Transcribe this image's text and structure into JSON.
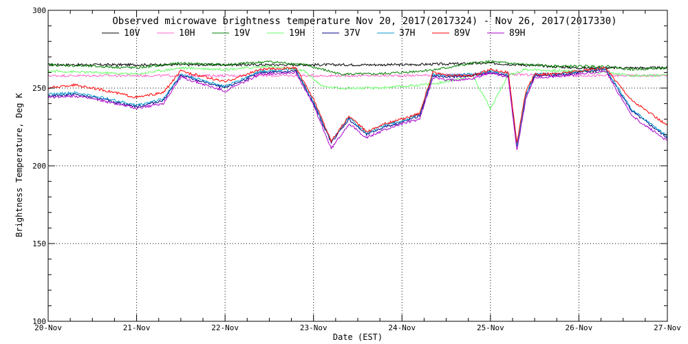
{
  "chart_data": {
    "type": "line",
    "title": "Observed microwave brightness temperature Nov 20, 2017(2017324) - Nov 26, 2017(2017330)",
    "xlabel": "Date (EST)",
    "ylabel": "Brightness Temperature, Deg K",
    "xlim": [
      "20-Nov",
      "27-Nov"
    ],
    "ylim": [
      100,
      300
    ],
    "yticks": [
      100,
      150,
      200,
      250,
      300
    ],
    "categories": [
      "20-Nov",
      "21-Nov",
      "22-Nov",
      "23-Nov",
      "24-Nov",
      "25-Nov",
      "26-Nov",
      "27-Nov"
    ],
    "grid": true,
    "legend_position": "top",
    "x_unit": "days since 20-Nov",
    "series": [
      {
        "name": "10V",
        "color": "#000000",
        "x": [
          0,
          1.5,
          2.0,
          3.0,
          4.0,
          5.0,
          6.0,
          7.0
        ],
        "values": [
          265,
          265,
          265,
          265,
          265,
          266,
          263,
          263
        ]
      },
      {
        "name": "10H",
        "color": "#ff66cc",
        "x": [
          0,
          1.5,
          2.0,
          3.0,
          4.0,
          5.0,
          6.0,
          7.0
        ],
        "values": [
          258,
          258,
          258,
          258,
          258,
          259,
          258,
          258
        ]
      },
      {
        "name": "19V",
        "color": "#008000",
        "x": [
          0,
          0.5,
          1.0,
          1.5,
          2.0,
          2.5,
          2.9,
          3.3,
          3.7,
          4.0,
          4.4,
          4.8,
          5.0,
          5.4,
          5.8,
          6.0,
          6.3,
          6.6,
          7.0
        ],
        "values": [
          265,
          264,
          263,
          266,
          265,
          267,
          265,
          259,
          259,
          260,
          262,
          266,
          267,
          265,
          264,
          264,
          264,
          262,
          263
        ]
      },
      {
        "name": "19H",
        "color": "#66ff66",
        "x": [
          0,
          0.5,
          1.0,
          1.5,
          2.0,
          2.5,
          2.9,
          3.1,
          3.3,
          3.7,
          4.0,
          4.4,
          4.8,
          5.0,
          5.2,
          5.4,
          5.8,
          6.0,
          6.3,
          6.6,
          7.0
        ],
        "values": [
          261,
          260,
          259,
          263,
          262,
          264,
          261,
          251,
          250,
          250,
          251,
          253,
          258,
          237,
          258,
          262,
          261,
          261,
          260,
          258,
          258
        ]
      },
      {
        "name": "37V",
        "color": "#000080",
        "x": [
          0,
          0.3,
          0.6,
          1.0,
          1.3,
          1.5,
          2.0,
          2.4,
          2.8,
          3.0,
          3.2,
          3.4,
          3.6,
          3.8,
          4.0,
          4.2,
          4.35,
          4.5,
          4.8,
          5.0,
          5.2,
          5.3,
          5.4,
          5.5,
          5.7,
          6.0,
          6.3,
          6.6,
          7.0
        ],
        "values": [
          245,
          246,
          243,
          238,
          242,
          258,
          250,
          260,
          261,
          240,
          215,
          230,
          220,
          225,
          228,
          232,
          258,
          257,
          258,
          260,
          258,
          212,
          245,
          258,
          258,
          260,
          262,
          235,
          218
        ]
      },
      {
        "name": "37H",
        "color": "#0099cc",
        "x": [
          0,
          0.3,
          0.6,
          1.0,
          1.3,
          1.5,
          2.0,
          2.4,
          2.8,
          3.0,
          3.2,
          3.4,
          3.6,
          3.8,
          4.0,
          4.2,
          4.35,
          4.5,
          4.8,
          5.0,
          5.2,
          5.3,
          5.4,
          5.5,
          5.7,
          6.0,
          6.3,
          6.6,
          7.0
        ],
        "values": [
          246,
          247,
          244,
          239,
          243,
          259,
          251,
          261,
          262,
          241,
          216,
          231,
          221,
          226,
          229,
          233,
          259,
          258,
          259,
          261,
          259,
          213,
          246,
          259,
          259,
          261,
          263,
          236,
          219
        ]
      },
      {
        "name": "89V",
        "color": "#ff0000",
        "x": [
          0,
          0.3,
          0.6,
          1.0,
          1.3,
          1.5,
          2.0,
          2.4,
          2.8,
          3.0,
          3.2,
          3.4,
          3.6,
          3.8,
          4.0,
          4.2,
          4.35,
          4.5,
          4.8,
          5.0,
          5.2,
          5.3,
          5.4,
          5.5,
          5.7,
          6.0,
          6.3,
          6.6,
          7.0
        ],
        "values": [
          250,
          252,
          249,
          244,
          247,
          261,
          254,
          262,
          263,
          243,
          216,
          232,
          222,
          227,
          230,
          234,
          260,
          258,
          258,
          262,
          260,
          215,
          248,
          259,
          259,
          261,
          263,
          242,
          226
        ]
      },
      {
        "name": "89H",
        "color": "#aa00cc",
        "x": [
          0,
          0.3,
          0.6,
          1.0,
          1.3,
          1.5,
          2.0,
          2.4,
          2.8,
          3.0,
          3.2,
          3.4,
          3.6,
          3.8,
          4.0,
          4.2,
          4.35,
          4.5,
          4.8,
          5.0,
          5.2,
          5.3,
          5.4,
          5.5,
          5.7,
          6.0,
          6.3,
          6.6,
          7.0
        ],
        "values": [
          244,
          245,
          242,
          237,
          240,
          257,
          248,
          259,
          260,
          239,
          211,
          227,
          218,
          223,
          227,
          230,
          257,
          255,
          256,
          260,
          257,
          210,
          243,
          257,
          257,
          259,
          261,
          232,
          216
        ]
      }
    ]
  }
}
